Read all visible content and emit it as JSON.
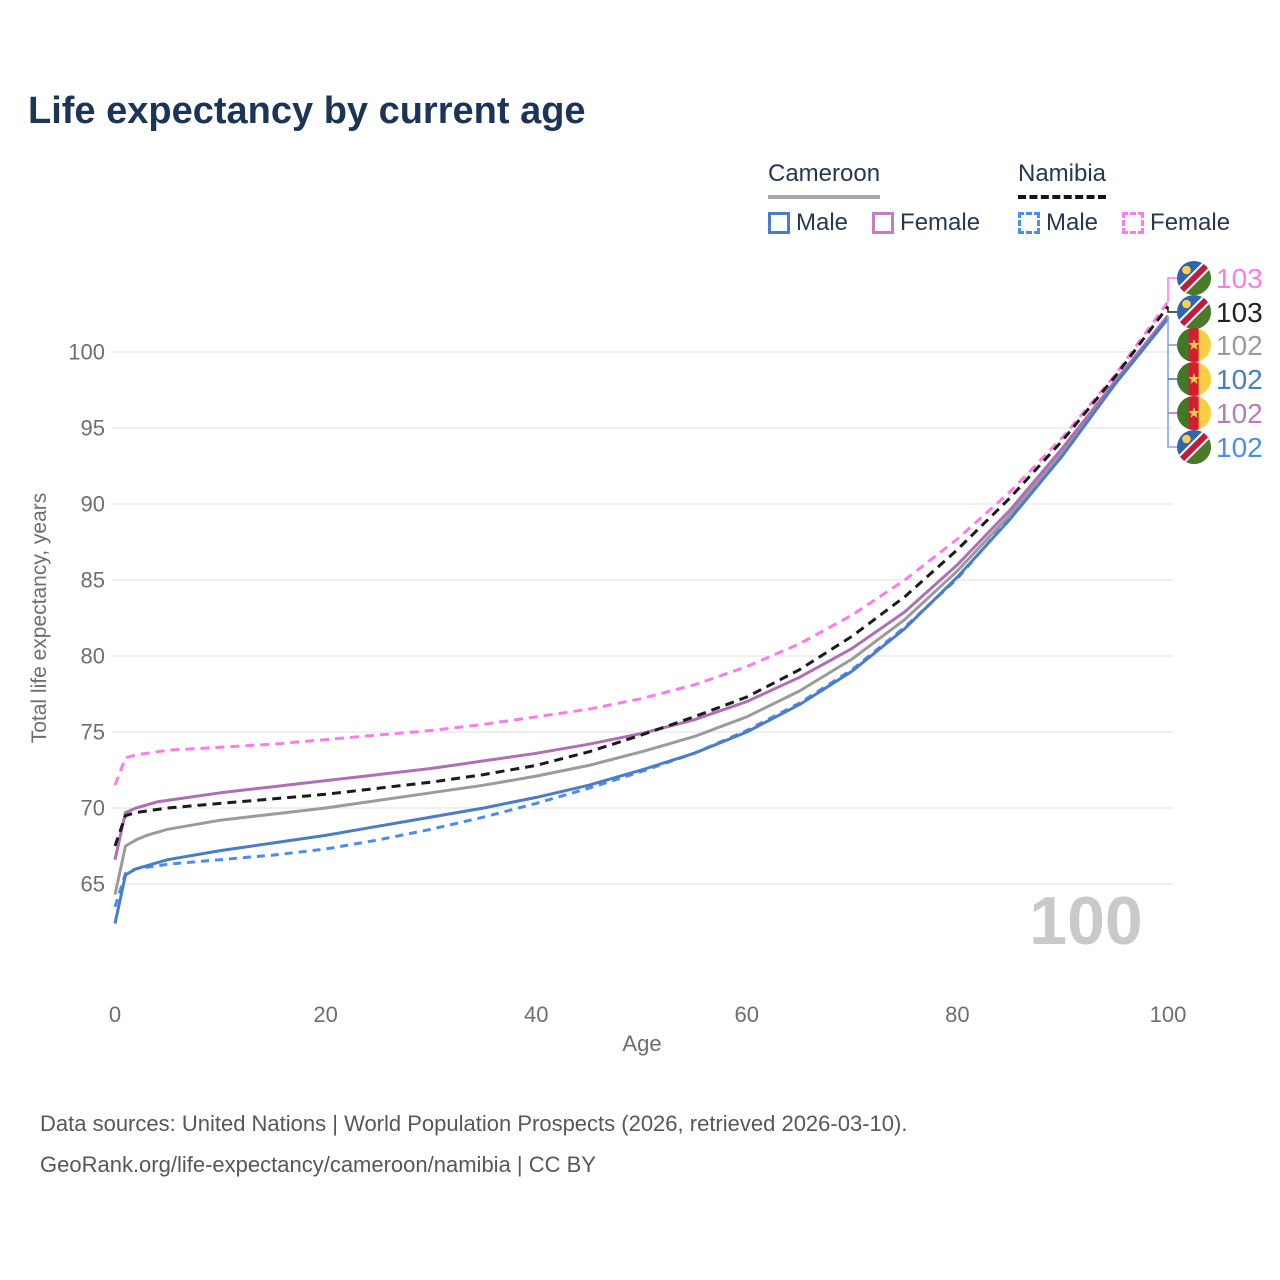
{
  "title": "Life expectancy by current age",
  "legend": {
    "groups": [
      {
        "country": "Cameroon",
        "line_style": "solid",
        "underline_color": "#a8a8a8",
        "items": [
          {
            "label": "Male",
            "color": "#4a7cc7",
            "dashed": false
          },
          {
            "label": "Female",
            "color": "#c37fc3",
            "dashed": false
          }
        ]
      },
      {
        "country": "Namibia",
        "line_style": "dashed",
        "underline_color": "#151515",
        "items": [
          {
            "label": "Male",
            "color": "#4b8cf0",
            "dashed": true
          },
          {
            "label": "Female",
            "color": "#ff7ce8",
            "dashed": true
          }
        ]
      }
    ]
  },
  "axes": {
    "x_label": "Age",
    "y_label": "Total life expectancy, years",
    "x_ticks": [
      0,
      20,
      40,
      60,
      80,
      100
    ],
    "y_ticks": [
      65,
      70,
      75,
      80,
      85,
      90,
      95,
      100
    ]
  },
  "watermark": "100",
  "footer": {
    "line1": "Data sources: United Nations | World Population Prospects (2026, retrieved 2026-03-10).",
    "line2": "GeoRank.org/life-expectancy/cameroon/namibia | CC BY"
  },
  "chart_data": {
    "type": "line",
    "title": "Life expectancy by current age",
    "xlabel": "Age",
    "ylabel": "Total life expectancy, years",
    "xlim": [
      0,
      100
    ],
    "ylim": [
      62,
      104.5
    ],
    "grid": "horizontal",
    "x": [
      0,
      1,
      2,
      3,
      4,
      5,
      10,
      15,
      20,
      25,
      30,
      35,
      40,
      45,
      50,
      55,
      60,
      65,
      70,
      75,
      80,
      85,
      90,
      95,
      100
    ],
    "series": [
      {
        "name": "Namibia Female",
        "country": "Namibia",
        "sex": "Female",
        "color": "#ff7ce8",
        "dash": "9 6",
        "style": "dashed",
        "values": [
          71.5,
          73.3,
          73.5,
          73.6,
          73.7,
          73.8,
          74.0,
          74.2,
          74.5,
          74.8,
          75.1,
          75.5,
          76.0,
          76.5,
          77.2,
          78.1,
          79.3,
          80.8,
          82.7,
          85.0,
          87.7,
          90.8,
          94.4,
          98.5,
          103.3
        ]
      },
      {
        "name": "Namibia Male",
        "country": "Namibia",
        "sex": "Male",
        "color": "#4b8cf0",
        "dash": "8 6",
        "style": "dashed",
        "values": [
          63.5,
          65.7,
          66.0,
          66.1,
          66.2,
          66.3,
          66.6,
          66.9,
          67.3,
          67.9,
          68.6,
          69.4,
          70.3,
          71.3,
          72.4,
          73.6,
          75.1,
          76.9,
          79.1,
          81.9,
          85.1,
          89.1,
          93.4,
          98.0,
          102.3
        ]
      },
      {
        "name": "Cameroon",
        "country": "Cameroon",
        "sex": "Both",
        "color": "#9b9b9b",
        "dash": null,
        "style": "solid",
        "values": [
          64.3,
          67.5,
          67.9,
          68.2,
          68.4,
          68.6,
          69.2,
          69.6,
          70.0,
          70.5,
          71.0,
          71.5,
          72.1,
          72.8,
          73.7,
          74.7,
          76.0,
          77.7,
          79.8,
          82.4,
          85.6,
          89.3,
          93.5,
          98.0,
          102.3
        ]
      },
      {
        "name": "Cameroon Female",
        "country": "Cameroon",
        "sex": "Female",
        "color": "#b06fb4",
        "dash": null,
        "style": "solid",
        "values": [
          66.6,
          69.7,
          70.0,
          70.2,
          70.4,
          70.5,
          71.0,
          71.4,
          71.8,
          72.2,
          72.6,
          73.1,
          73.6,
          74.2,
          74.9,
          75.8,
          77.0,
          78.6,
          80.5,
          82.9,
          86.0,
          89.6,
          93.7,
          98.1,
          102.4
        ]
      },
      {
        "name": "Namibia",
        "country": "Namibia",
        "sex": "Both",
        "color": "#1b1b1b",
        "dash": "9 6",
        "style": "dashed",
        "values": [
          67.5,
          69.5,
          69.7,
          69.8,
          69.9,
          70.0,
          70.3,
          70.6,
          70.9,
          71.3,
          71.7,
          72.2,
          72.8,
          73.7,
          74.8,
          76.0,
          77.3,
          79.1,
          81.3,
          83.9,
          87.0,
          90.4,
          94.2,
          98.4,
          103.0
        ]
      },
      {
        "name": "Cameroon Male",
        "country": "Cameroon",
        "sex": "Male",
        "color": "#4a7cc7",
        "dash": null,
        "style": "solid",
        "values": [
          62.4,
          65.6,
          66.0,
          66.2,
          66.4,
          66.6,
          67.2,
          67.7,
          68.2,
          68.8,
          69.4,
          70.0,
          70.7,
          71.5,
          72.5,
          73.6,
          75.0,
          76.8,
          79.0,
          81.8,
          85.2,
          89.0,
          93.2,
          97.9,
          102.2
        ]
      }
    ],
    "end_labels": [
      {
        "series": "Namibia Female",
        "flag": "namibia",
        "value": "103",
        "color": "#ff7ce8"
      },
      {
        "series": "Namibia",
        "flag": "namibia",
        "value": "103",
        "color": "#222222"
      },
      {
        "series": "Cameroon",
        "flag": "cameroon",
        "value": "102",
        "color": "#9b9b9b"
      },
      {
        "series": "Cameroon Male",
        "flag": "cameroon",
        "value": "102",
        "color": "#4a7cc7"
      },
      {
        "series": "Cameroon Female",
        "flag": "cameroon",
        "value": "102",
        "color": "#b57cba"
      },
      {
        "series": "Namibia Male",
        "flag": "namibia",
        "value": "102",
        "color": "#4b8cf0"
      }
    ],
    "legend_position": "top-right"
  }
}
